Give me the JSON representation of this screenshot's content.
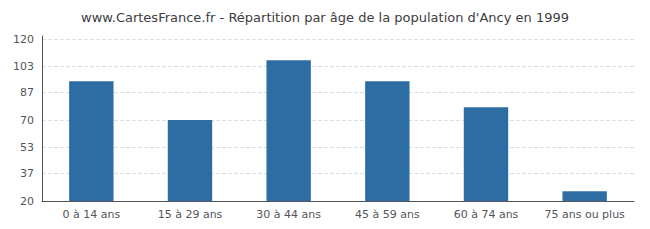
{
  "chart_data": {
    "type": "bar",
    "title": "www.CartesFrance.fr - Répartition par âge de la population d'Ancy en 1999",
    "categories": [
      "0 à 14 ans",
      "15 à 29 ans",
      "30 à 44 ans",
      "45 à 59 ans",
      "60 à 74 ans",
      "75 ans ou plus"
    ],
    "values": [
      94,
      70,
      107,
      94,
      78,
      26
    ],
    "color": "#2e6da4",
    "ylim": [
      20,
      122
    ],
    "yticks": [
      20,
      37,
      53,
      70,
      87,
      103,
      120
    ],
    "grid": true
  }
}
